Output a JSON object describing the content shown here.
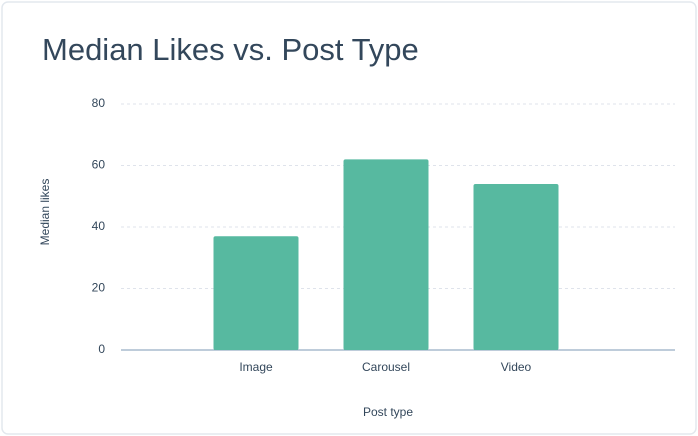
{
  "chart_data": {
    "type": "bar",
    "title": "Median Likes vs. Post Type",
    "x_label": "Post type",
    "y_label": "Median likes",
    "categories": [
      "Image",
      "Carousel",
      "Video"
    ],
    "values": [
      37,
      62,
      54
    ],
    "color": "#57b9a0",
    "ylim": [
      0,
      80
    ],
    "yticks": [
      0,
      20,
      40,
      60,
      80
    ],
    "grid": true
  }
}
